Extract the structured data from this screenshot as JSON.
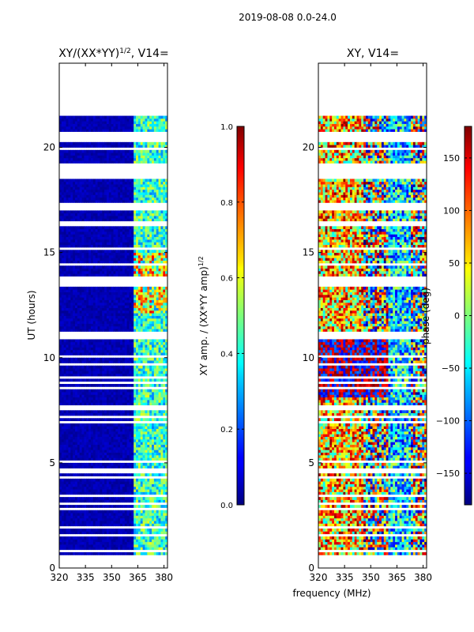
{
  "suptitle": "2019-08-08 0.0-24.0",
  "xlabel": "frequency (MHz)",
  "chart_data": [
    {
      "type": "heatmap",
      "title": "XY/(XX*YY)",
      "title_sup": "1/2",
      "title_suffix": ", V14=",
      "ylabel": "UT (hours)",
      "xlim": [
        320,
        382
      ],
      "ylim": [
        0,
        24
      ],
      "xticks": [
        320,
        335,
        350,
        365,
        380
      ],
      "yticks": [
        0,
        5,
        10,
        15,
        20
      ],
      "data_rows_ut": [
        0.5,
        21.5
      ],
      "gaps_ut": [
        [
          1.9,
          2.05
        ],
        [
          4.6,
          4.7
        ],
        [
          7.45,
          7.7
        ],
        [
          10.9,
          11.2
        ],
        [
          16.3,
          16.55
        ],
        [
          16.95,
          17.4
        ],
        [
          18.55,
          19.3
        ],
        [
          19.9,
          20.0
        ],
        [
          20.2,
          20.8
        ],
        [
          21.5,
          24.0
        ]
      ],
      "colorbar": {
        "label": "XY amp. / (XX*YY amp)",
        "label_sup": "1/2",
        "range": [
          0.0,
          1.0
        ],
        "ticks": [
          "0.0",
          "0.2",
          "0.4",
          "0.6",
          "0.8",
          "1.0"
        ],
        "colormap": "jet"
      }
    },
    {
      "type": "heatmap",
      "title": "XY, V14=",
      "xlim": [
        320,
        382
      ],
      "ylim": [
        0,
        24
      ],
      "xticks": [
        320,
        335,
        350,
        365,
        380
      ],
      "yticks": [
        0,
        5,
        10,
        15,
        20
      ],
      "data_rows_ut": [
        0.5,
        21.5
      ],
      "colorbar": {
        "label": "phase (deg)",
        "range": [
          -180,
          180
        ],
        "ticks": [
          "−150",
          "−100",
          "−50",
          "0",
          "50",
          "100",
          "150"
        ],
        "tick_values": [
          -150,
          -100,
          -50,
          0,
          50,
          100,
          150
        ],
        "colormap": "jet"
      }
    }
  ]
}
